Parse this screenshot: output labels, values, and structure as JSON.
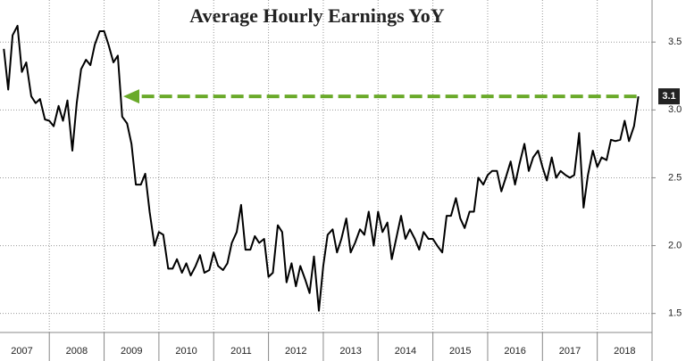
{
  "chart_data": {
    "type": "line",
    "title": "Average Hourly Earnings YoY",
    "x": [
      2007.17,
      2007.25,
      2007.33,
      2007.42,
      2007.5,
      2007.58,
      2007.67,
      2007.75,
      2007.83,
      2007.92,
      2008.0,
      2008.08,
      2008.17,
      2008.25,
      2008.33,
      2008.42,
      2008.5,
      2008.58,
      2008.67,
      2008.75,
      2008.83,
      2008.92,
      2009.0,
      2009.08,
      2009.17,
      2009.25,
      2009.33,
      2009.42,
      2009.5,
      2009.58,
      2009.67,
      2009.75,
      2009.83,
      2009.92,
      2010.0,
      2010.08,
      2010.17,
      2010.25,
      2010.33,
      2010.42,
      2010.5,
      2010.58,
      2010.67,
      2010.75,
      2010.83,
      2010.92,
      2011.0,
      2011.08,
      2011.17,
      2011.25,
      2011.33,
      2011.42,
      2011.5,
      2011.58,
      2011.67,
      2011.75,
      2011.83,
      2011.92,
      2012.0,
      2012.08,
      2012.17,
      2012.25,
      2012.33,
      2012.42,
      2012.5,
      2012.58,
      2012.67,
      2012.75,
      2012.83,
      2012.92,
      2013.0,
      2013.08,
      2013.17,
      2013.25,
      2013.33,
      2013.42,
      2013.5,
      2013.58,
      2013.67,
      2013.75,
      2013.83,
      2013.92,
      2014.0,
      2014.08,
      2014.17,
      2014.25,
      2014.33,
      2014.42,
      2014.5,
      2014.58,
      2014.67,
      2014.75,
      2014.83,
      2014.92,
      2015.0,
      2015.08,
      2015.17,
      2015.25,
      2015.33,
      2015.42,
      2015.5,
      2015.58,
      2015.67,
      2015.75,
      2015.83,
      2015.92,
      2016.0,
      2016.08,
      2016.17,
      2016.25,
      2016.33,
      2016.42,
      2016.5,
      2016.58,
      2016.67,
      2016.75,
      2016.83,
      2016.92,
      2017.0,
      2017.08,
      2017.17,
      2017.25,
      2017.33,
      2017.42,
      2017.5,
      2017.58,
      2017.67,
      2017.75,
      2017.83,
      2017.92,
      2018.0,
      2018.08,
      2018.17,
      2018.25,
      2018.33,
      2018.42,
      2018.5,
      2018.58,
      2018.67,
      2018.75
    ],
    "series": [
      {
        "color": "#000000",
        "values": [
          3.45,
          3.15,
          3.55,
          3.62,
          3.28,
          3.35,
          3.1,
          3.05,
          3.08,
          2.93,
          2.92,
          2.88,
          3.03,
          2.92,
          3.07,
          2.7,
          3.05,
          3.3,
          3.37,
          3.33,
          3.48,
          3.58,
          3.58,
          3.48,
          3.35,
          3.4,
          2.95,
          2.9,
          2.75,
          2.45,
          2.45,
          2.53,
          2.25,
          2.0,
          2.1,
          2.08,
          1.83,
          1.83,
          1.9,
          1.8,
          1.87,
          1.78,
          1.85,
          1.93,
          1.8,
          1.82,
          1.95,
          1.85,
          1.82,
          1.87,
          2.02,
          2.1,
          2.3,
          1.97,
          1.97,
          2.07,
          2.02,
          2.05,
          1.77,
          1.8,
          2.15,
          2.1,
          1.73,
          1.87,
          1.7,
          1.85,
          1.75,
          1.65,
          1.92,
          1.52,
          1.85,
          2.08,
          2.12,
          1.95,
          2.05,
          2.2,
          1.95,
          2.02,
          2.12,
          2.08,
          2.25,
          2.0,
          2.25,
          2.1,
          2.17,
          1.9,
          2.05,
          2.22,
          2.05,
          2.12,
          2.05,
          1.97,
          2.1,
          2.05,
          2.05,
          2.0,
          1.95,
          2.22,
          2.22,
          2.35,
          2.2,
          2.13,
          2.25,
          2.25,
          2.5,
          2.45,
          2.52,
          2.55,
          2.55,
          2.4,
          2.5,
          2.62,
          2.45,
          2.6,
          2.75,
          2.55,
          2.65,
          2.7,
          2.58,
          2.48,
          2.65,
          2.5,
          2.55,
          2.52,
          2.5,
          2.52,
          2.83,
          2.28,
          2.52,
          2.7,
          2.58,
          2.65,
          2.63,
          2.78,
          2.77,
          2.78,
          2.92,
          2.77,
          2.88,
          3.1
        ]
      }
    ],
    "xlim": [
      2007.1,
      2019.0
    ],
    "xticks": [
      {
        "value": 2007.5,
        "label": "2007"
      },
      {
        "value": 2008.5,
        "label": "2008"
      },
      {
        "value": 2009.5,
        "label": "2009"
      },
      {
        "value": 2010.5,
        "label": "2010"
      },
      {
        "value": 2011.5,
        "label": "2011"
      },
      {
        "value": 2012.5,
        "label": "2012"
      },
      {
        "value": 2013.5,
        "label": "2013"
      },
      {
        "value": 2014.5,
        "label": "2014"
      },
      {
        "value": 2015.5,
        "label": "2015"
      },
      {
        "value": 2016.5,
        "label": "2016"
      },
      {
        "value": 2017.5,
        "label": "2017"
      },
      {
        "value": 2018.5,
        "label": "2018"
      }
    ],
    "ylim": [
      1.36,
      3.81
    ],
    "yticks": [
      1.5,
      {
        "value": 2,
        "label": "2.0"
      },
      2.5,
      {
        "value": 3,
        "label": "3.0"
      },
      3.5
    ],
    "grid": true,
    "annotation_color": "#6aaa2a"
  }
}
